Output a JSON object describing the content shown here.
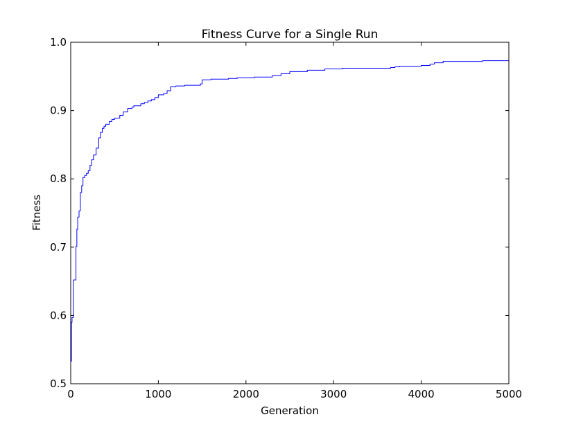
{
  "chart_data": {
    "type": "line",
    "title": "Fitness Curve for a Single Run",
    "xlabel": "Generation",
    "ylabel": "Fitness",
    "xlim": [
      0,
      5000
    ],
    "ylim": [
      0.5,
      1.0
    ],
    "xticks": [
      0,
      1000,
      2000,
      3000,
      4000,
      5000
    ],
    "xtick_labels": [
      "0",
      "1000",
      "2000",
      "3000",
      "4000",
      "5000"
    ],
    "yticks": [
      0.5,
      0.6,
      0.7,
      0.8,
      0.9,
      1.0
    ],
    "ytick_labels": [
      "0.5",
      "0.6",
      "0.7",
      "0.8",
      "0.9",
      "1.0"
    ],
    "grid": false,
    "step": true,
    "series": [
      {
        "color": "#0000ff",
        "x": [
          0,
          8,
          15,
          30,
          45,
          60,
          70,
          80,
          95,
          110,
          125,
          140,
          160,
          180,
          200,
          220,
          240,
          260,
          290,
          320,
          340,
          360,
          380,
          400,
          440,
          470,
          500,
          560,
          600,
          650,
          700,
          720,
          800,
          840,
          880,
          920,
          960,
          1000,
          1060,
          1100,
          1140,
          1200,
          1300,
          1480,
          1500,
          1600,
          1800,
          1900,
          2100,
          2300,
          2400,
          2500,
          2700,
          2900,
          3100,
          3400,
          3650,
          3700,
          3750,
          4000,
          4100,
          4150,
          4250,
          4700,
          5000
        ],
        "y": [
          0.533,
          0.59,
          0.597,
          0.652,
          0.652,
          0.701,
          0.726,
          0.744,
          0.753,
          0.78,
          0.79,
          0.802,
          0.805,
          0.808,
          0.812,
          0.82,
          0.828,
          0.835,
          0.845,
          0.86,
          0.868,
          0.874,
          0.877,
          0.88,
          0.884,
          0.887,
          0.889,
          0.893,
          0.898,
          0.903,
          0.905,
          0.907,
          0.91,
          0.912,
          0.914,
          0.916,
          0.919,
          0.923,
          0.925,
          0.929,
          0.935,
          0.936,
          0.937,
          0.939,
          0.945,
          0.946,
          0.947,
          0.948,
          0.949,
          0.951,
          0.954,
          0.957,
          0.959,
          0.961,
          0.962,
          0.962,
          0.963,
          0.964,
          0.965,
          0.966,
          0.968,
          0.97,
          0.972,
          0.973,
          0.975
        ]
      }
    ]
  }
}
